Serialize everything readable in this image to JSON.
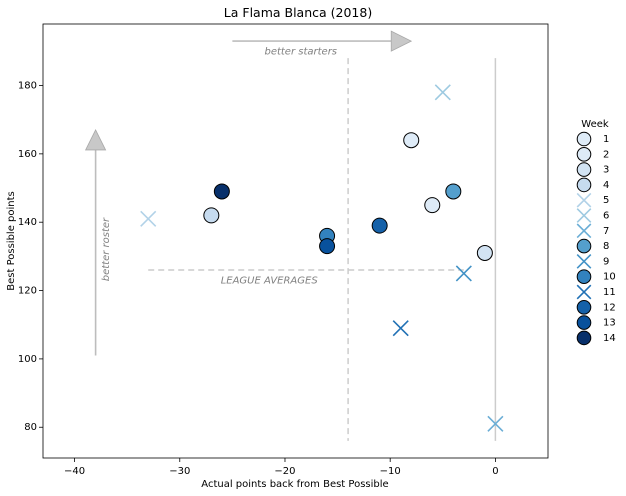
{
  "chart_data": {
    "type": "scatter",
    "title": "La Flama Blanca (2018)",
    "xlabel": "Actual points back from Best Possible",
    "ylabel": "Best Possible points",
    "xlim": [
      -43,
      5
    ],
    "ylim": [
      71,
      198
    ],
    "xticks": [
      -40,
      -30,
      -20,
      -10,
      0
    ],
    "xtick_labels": [
      "−40",
      "−30",
      "−20",
      "−10",
      "0"
    ],
    "yticks": [
      80,
      100,
      120,
      140,
      160,
      180
    ],
    "ytick_labels": [
      "80",
      "100",
      "120",
      "140",
      "160",
      "180"
    ],
    "grid": false,
    "legend": {
      "title": "Week",
      "position": "right"
    },
    "series": [
      {
        "name": "1",
        "marker": "circle",
        "color": "#deebf7",
        "points": [
          {
            "x": -8,
            "y": 164
          }
        ]
      },
      {
        "name": "2",
        "marker": "circle",
        "color": "#deebf7",
        "points": [
          {
            "x": -6,
            "y": 145
          }
        ]
      },
      {
        "name": "3",
        "marker": "circle",
        "color": "#d2e3f3",
        "points": [
          {
            "x": -1,
            "y": 131
          }
        ]
      },
      {
        "name": "4",
        "marker": "circle",
        "color": "#c6dbef",
        "points": [
          {
            "x": -27,
            "y": 142
          }
        ]
      },
      {
        "name": "5",
        "marker": "x",
        "color": "#b2d2e8",
        "points": [
          {
            "x": -33,
            "y": 141
          }
        ]
      },
      {
        "name": "6",
        "marker": "x",
        "color": "#9ecae1",
        "points": [
          {
            "x": -5,
            "y": 178
          }
        ]
      },
      {
        "name": "7",
        "marker": "x",
        "color": "#6baed6",
        "points": [
          {
            "x": 0,
            "y": 81
          }
        ]
      },
      {
        "name": "8",
        "marker": "circle",
        "color": "#549fcd",
        "points": [
          {
            "x": -4,
            "y": 149
          }
        ]
      },
      {
        "name": "9",
        "marker": "x",
        "color": "#4292c6",
        "points": [
          {
            "x": -3,
            "y": 125
          }
        ]
      },
      {
        "name": "10",
        "marker": "circle",
        "color": "#3282be",
        "points": [
          {
            "x": -16,
            "y": 136
          }
        ]
      },
      {
        "name": "11",
        "marker": "x",
        "color": "#2171b5",
        "points": [
          {
            "x": -9,
            "y": 109
          }
        ]
      },
      {
        "name": "12",
        "marker": "circle",
        "color": "#1561a9",
        "points": [
          {
            "x": -11,
            "y": 139
          }
        ]
      },
      {
        "name": "13",
        "marker": "circle",
        "color": "#08519c",
        "points": [
          {
            "x": -16,
            "y": 133
          }
        ]
      },
      {
        "name": "14",
        "marker": "circle",
        "color": "#08306b",
        "points": [
          {
            "x": -26,
            "y": 149
          }
        ]
      }
    ],
    "reference_lines": [
      {
        "orientation": "vertical",
        "x": -14,
        "y_range": [
          76,
          188
        ],
        "style": "dashed",
        "color": "#cccccc"
      },
      {
        "orientation": "horizontal",
        "y": 126,
        "x_range": [
          -33,
          -3
        ],
        "style": "dashed",
        "color": "#cccccc"
      },
      {
        "orientation": "vertical",
        "x": 0,
        "y_range": [
          76,
          188
        ],
        "style": "solid",
        "color": "#cccccc"
      }
    ],
    "annotations": [
      {
        "text": "better starters",
        "arrow": {
          "from": [
            -25,
            193
          ],
          "to": [
            -8,
            193
          ]
        },
        "label_at": [
          -18.5,
          190
        ]
      },
      {
        "text": "better roster",
        "arrow": {
          "from": [
            -38,
            101
          ],
          "to": [
            -38,
            167
          ]
        },
        "label_at": [
          -37,
          132
        ]
      },
      {
        "text": "LEAGUE AVERAGES",
        "label_at": [
          -21.5,
          123
        ]
      }
    ]
  }
}
